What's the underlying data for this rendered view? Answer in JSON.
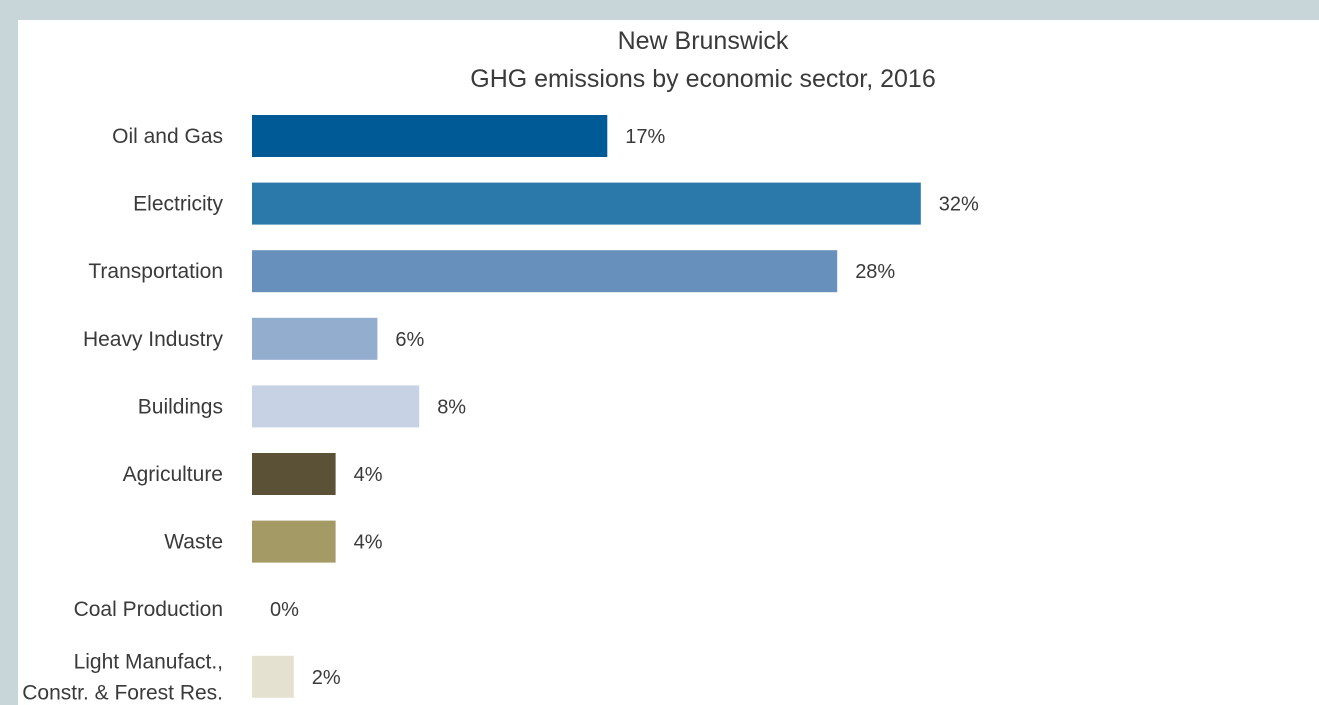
{
  "chart_data": {
    "type": "bar",
    "orientation": "horizontal",
    "title": "New Brunswick",
    "subtitle": "GHG emissions by economic sector, 2016",
    "xlabel": "",
    "ylabel": "",
    "xlim": [
      0,
      32
    ],
    "grid": false,
    "legend": "none",
    "value_suffix": "%",
    "categories": [
      [
        "Oil and Gas"
      ],
      [
        "Electricity"
      ],
      [
        "Transportation"
      ],
      [
        "Heavy Industry"
      ],
      [
        "Buildings"
      ],
      [
        "Agriculture"
      ],
      [
        "Waste"
      ],
      [
        "Coal Production"
      ],
      [
        "Light Manufact.,",
        "Constr. & Forest Res."
      ]
    ],
    "values": [
      17,
      32,
      28,
      6,
      8,
      4,
      4,
      0,
      2
    ],
    "value_labels": [
      "17%",
      "32%",
      "28%",
      "6%",
      "8%",
      "4%",
      "4%",
      "0%",
      "2%"
    ],
    "colors": [
      "#005a96",
      "#2b78aa",
      "#6890bc",
      "#93adcf",
      "#c8d2e5",
      "#5b5136",
      "#a39a65",
      "#ffffff",
      "#e4e1d0"
    ]
  }
}
